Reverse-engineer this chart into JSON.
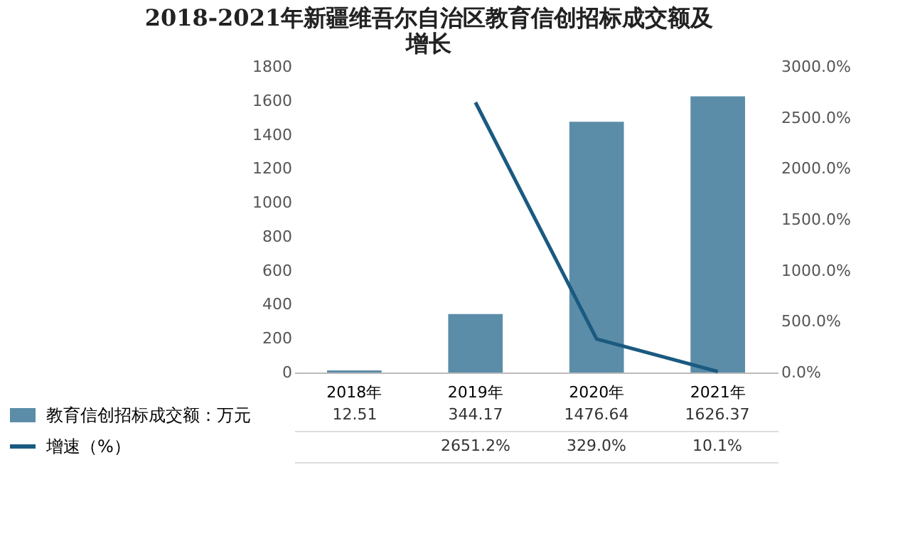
{
  "chart_data": {
    "type": "bar",
    "title": "2018-2021年新疆维吾尔自治区教育信创招标成交额及增长",
    "categories": [
      "2018年",
      "2019年",
      "2020年",
      "2021年"
    ],
    "series": [
      {
        "name": "教育信创招标成交额：万元",
        "color": "#5b8da8",
        "values": [
          12.51,
          344.17,
          1476.64,
          1626.37
        ],
        "value_labels": [
          "12.51",
          "344.17",
          "1476.64",
          "1626.37"
        ]
      },
      {
        "name": "增速（%）",
        "type": "line",
        "axis": "y2",
        "color": "#1b5a80",
        "values": [
          null,
          2651.2,
          329.0,
          10.1
        ],
        "value_labels": [
          null,
          "2651.2%",
          "329.0%",
          "10.1%"
        ]
      }
    ],
    "ylim": [
      0,
      1800
    ],
    "yticks": [
      0,
      200,
      400,
      600,
      800,
      1000,
      1200,
      1400,
      1600,
      1800
    ],
    "y2lim": [
      0,
      3000
    ],
    "y2ticks": [
      {
        "value": 0,
        "label": "0.0%"
      },
      {
        "value": 500,
        "label": "500.0%"
      },
      {
        "value": 1000,
        "label": "1000.0%"
      },
      {
        "value": 1500,
        "label": "1500.0%"
      },
      {
        "value": 2000,
        "label": "2000.0%"
      },
      {
        "value": 2500,
        "label": "2500.0%"
      },
      {
        "value": 3000,
        "label": "3000.0%"
      }
    ],
    "grid": false,
    "legend": "bottom left",
    "marker": "none",
    "line_style": "solid"
  }
}
